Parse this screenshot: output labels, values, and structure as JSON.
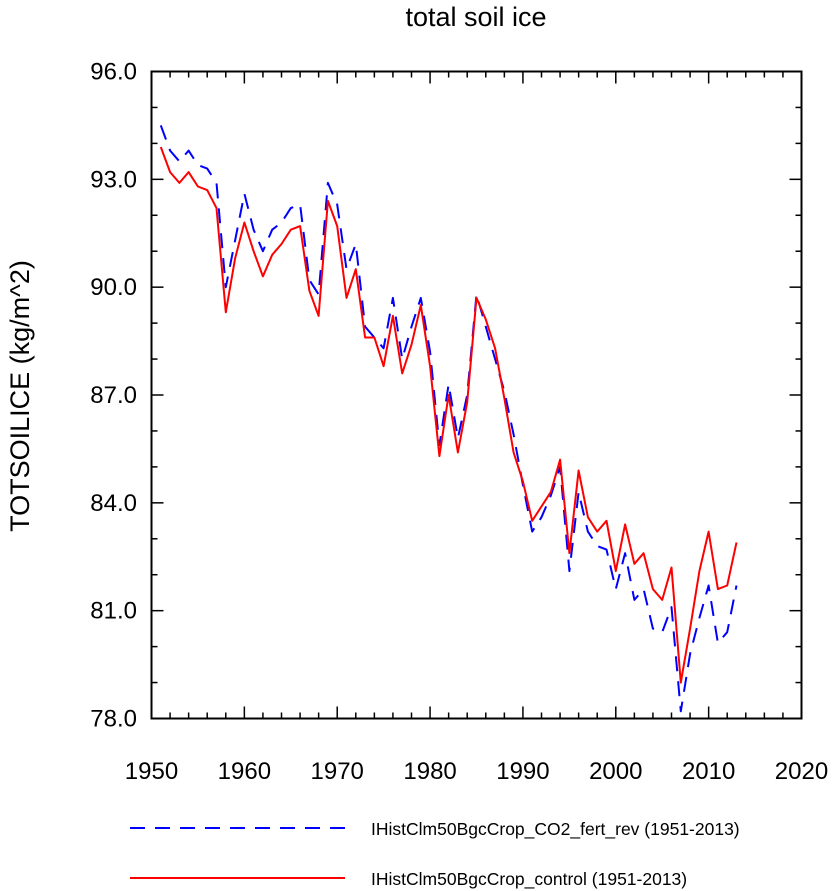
{
  "chart_data": {
    "type": "line",
    "title": "total soil ice",
    "ylabel": "TOTSOILICE  (kg/m^2)",
    "xlabel": "",
    "xlim": [
      1950,
      2020
    ],
    "ylim": [
      78.0,
      96.0
    ],
    "xticks": [
      1950,
      1960,
      1970,
      1980,
      1990,
      2000,
      2010,
      2020
    ],
    "yticks": [
      "78.0",
      "81.0",
      "84.0",
      "87.0",
      "90.0",
      "93.0",
      "96.0"
    ],
    "grid": false,
    "legend_position": "bottom",
    "x": [
      1951,
      1952,
      1953,
      1954,
      1955,
      1956,
      1957,
      1958,
      1959,
      1960,
      1961,
      1962,
      1963,
      1964,
      1965,
      1966,
      1967,
      1968,
      1969,
      1970,
      1971,
      1972,
      1973,
      1974,
      1975,
      1976,
      1977,
      1978,
      1979,
      1980,
      1981,
      1982,
      1983,
      1984,
      1985,
      1986,
      1987,
      1988,
      1989,
      1990,
      1991,
      1992,
      1993,
      1994,
      1995,
      1996,
      1997,
      1998,
      1999,
      2000,
      2001,
      2002,
      2003,
      2004,
      2005,
      2006,
      2007,
      2008,
      2009,
      2010,
      2011,
      2012,
      2013
    ],
    "series": [
      {
        "name": "IHistClm50BgcCrop_CO2_fert_rev (1951-2013)",
        "color": "#0000ff",
        "dash": "dashed",
        "values": [
          94.5,
          93.8,
          93.5,
          93.8,
          93.4,
          93.3,
          92.9,
          90.0,
          91.3,
          92.6,
          91.6,
          91.0,
          91.6,
          91.8,
          92.2,
          92.3,
          90.2,
          89.8,
          92.9,
          92.3,
          90.5,
          91.2,
          88.9,
          88.6,
          88.3,
          89.7,
          88.0,
          88.9,
          89.7,
          88.2,
          85.6,
          87.3,
          85.8,
          87.0,
          89.8,
          88.9,
          88.0,
          87.1,
          85.9,
          84.5,
          83.2,
          83.6,
          84.2,
          85.0,
          82.1,
          84.3,
          83.2,
          82.8,
          82.7,
          81.6,
          82.6,
          81.3,
          81.6,
          80.5,
          80.4,
          81.1,
          78.2,
          79.8,
          80.8,
          81.7,
          80.1,
          80.4,
          81.7
        ]
      },
      {
        "name": "IHistClm50BgcCrop_control (1951-2013)",
        "color": "#ff0000",
        "dash": "solid",
        "values": [
          93.9,
          93.2,
          92.9,
          93.2,
          92.8,
          92.7,
          92.2,
          89.3,
          90.8,
          91.8,
          91.0,
          90.3,
          90.9,
          91.2,
          91.6,
          91.7,
          89.9,
          89.2,
          92.4,
          91.7,
          89.7,
          90.5,
          88.6,
          88.6,
          87.8,
          89.2,
          87.6,
          88.4,
          89.5,
          87.8,
          85.3,
          87.0,
          85.4,
          86.8,
          89.7,
          89.1,
          88.3,
          86.9,
          85.4,
          84.6,
          83.5,
          83.9,
          84.3,
          85.2,
          82.6,
          84.9,
          83.6,
          83.2,
          83.5,
          82.1,
          83.4,
          82.3,
          82.6,
          81.6,
          81.3,
          82.2,
          79.0,
          80.5,
          82.1,
          83.2,
          81.6,
          81.7,
          82.9
        ]
      }
    ]
  }
}
